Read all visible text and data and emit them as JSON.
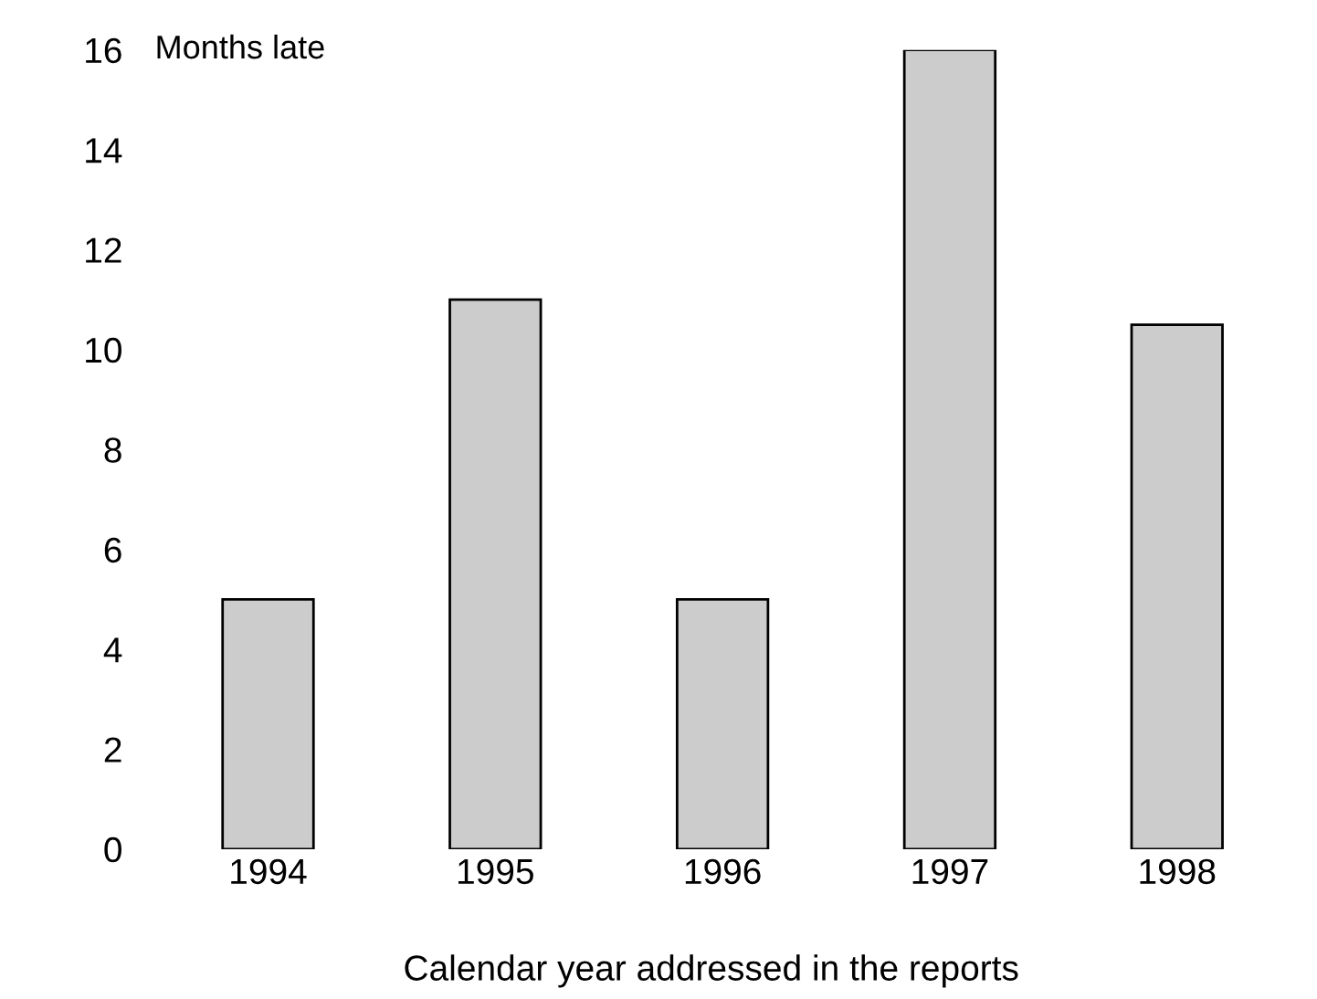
{
  "chart_data": {
    "type": "bar",
    "ylabel": "Months late",
    "xlabel": "Calendar year addressed in the reports",
    "categories": [
      "1994",
      "1995",
      "1996",
      "1997",
      "1998"
    ],
    "values": [
      5,
      11,
      5,
      16,
      10.5
    ],
    "color": "#cccccc",
    "ylim": [
      0,
      16
    ],
    "yticks": [
      0,
      2,
      4,
      6,
      8,
      10,
      12,
      14,
      16
    ],
    "grid": false
  }
}
